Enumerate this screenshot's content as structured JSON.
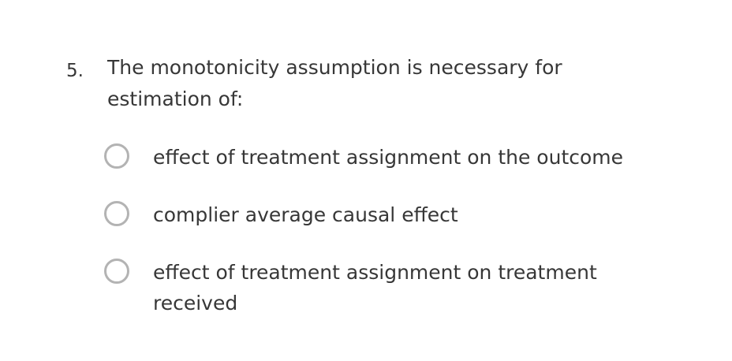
{
  "question": {
    "number": "5.",
    "text": "The monotonicity assumption is necessary for estimation of:"
  },
  "options": [
    {
      "label": "effect of treatment assignment on the outcome",
      "selected": false
    },
    {
      "label": "complier average causal effect",
      "selected": false
    },
    {
      "label": "effect of treatment assignment on treatment received",
      "selected": false
    }
  ],
  "colors": {
    "text": "#373737",
    "radio_border": "#b3b3b3"
  }
}
